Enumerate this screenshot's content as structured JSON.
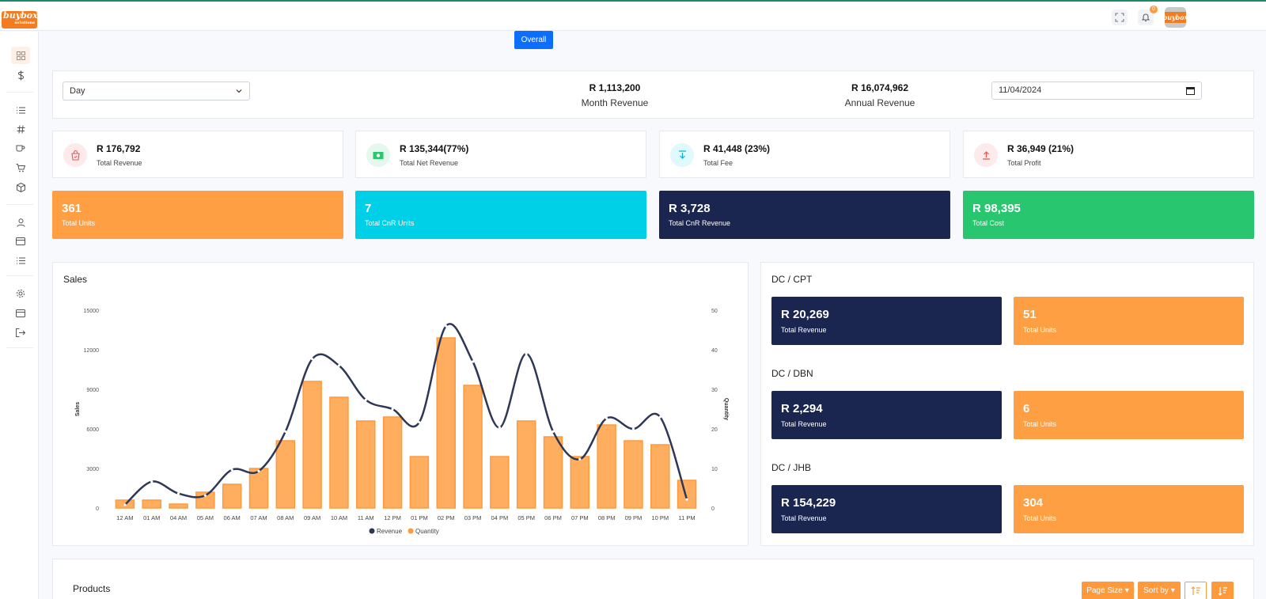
{
  "brand": {
    "logo_text": "buybox",
    "logo_sub": "solutions",
    "avatar_text": "buybox"
  },
  "topbar": {
    "notification_count": "0"
  },
  "colors": {
    "orange": "#ff9a3c",
    "cyan": "#00cfe8",
    "navy": "#1b2650",
    "green": "#28c76f",
    "primary": "#0d6efd"
  },
  "sidebar": {
    "icons": [
      "dashboard-icon",
      "dollar-icon",
      "list-icon",
      "hash-icon",
      "cup-icon",
      "cart-icon",
      "box-icon",
      "user-icon",
      "card-icon",
      "list-icon",
      "gear-icon",
      "card-icon",
      "logout-icon"
    ]
  },
  "header": {
    "overall_label": "Overall"
  },
  "filters": {
    "period": "Day",
    "month_revenue_value": "R 1,113,200",
    "month_revenue_label": "Month Revenue",
    "annual_revenue_value": "R 16,074,962",
    "annual_revenue_label": "Annual Revenue",
    "date": "11/04/2024"
  },
  "stats": [
    {
      "value": "R 176,792",
      "label": "Total Revenue",
      "icon": "bag-icon",
      "color": "#ea5455",
      "bg": "#fdeaea"
    },
    {
      "value": "R 135,344(77%)",
      "label": "Total Net Revenue",
      "icon": "money-icon",
      "color": "#28c76f",
      "bg": "#e5f8ed"
    },
    {
      "value": "R 41,448 (23%)",
      "label": "Total Fee",
      "icon": "download-icon",
      "color": "#00cfe8",
      "bg": "#e0f9fc"
    },
    {
      "value": "R 36,949 (21%)",
      "label": "Total Profit",
      "icon": "upload-icon",
      "color": "#ea5455",
      "bg": "#fdeaea"
    }
  ],
  "tiles": [
    {
      "value": "361",
      "label": "Total Units",
      "color": "#ff9f43"
    },
    {
      "value": "7",
      "label": "Total CnR Units",
      "color": "#00cfe8"
    },
    {
      "value": "R 3,728",
      "label": "Total CnR Revenue",
      "color": "#1b2650"
    },
    {
      "value": "R 98,395",
      "label": "Total Cost",
      "color": "#28c76f"
    }
  ],
  "sales": {
    "title": "Sales"
  },
  "chart_data": {
    "type": "bar",
    "title": "",
    "categories": [
      "12 AM",
      "01 AM",
      "04 AM",
      "05 AM",
      "06 AM",
      "07 AM",
      "08 AM",
      "09 AM",
      "10 AM",
      "11 AM",
      "12 PM",
      "01 PM",
      "02 PM",
      "03 PM",
      "04 PM",
      "05 PM",
      "06 PM",
      "07 PM",
      "08 PM",
      "09 PM",
      "10 PM",
      "11 PM"
    ],
    "ylabel": "Sales",
    "y2label": "Quantity",
    "ylim": [
      0,
      15000
    ],
    "y2lim": [
      0,
      50
    ],
    "yticks": [
      "15000",
      "12000",
      "9000",
      "6000",
      "3000",
      "0"
    ],
    "y2ticks": [
      "50",
      "40",
      "30",
      "20",
      "10",
      "0"
    ],
    "legend_position": "bottom",
    "series": [
      {
        "name": "Revenue",
        "axis": "left",
        "kind": "line",
        "color": "#2d3756",
        "values": [
          250,
          2000,
          1100,
          950,
          2900,
          2800,
          5800,
          11300,
          10800,
          8200,
          7500,
          6500,
          13800,
          11100,
          6100,
          11700,
          5800,
          3700,
          6800,
          6000,
          6900,
          650
        ]
      },
      {
        "name": "Quantity",
        "axis": "right",
        "kind": "bar",
        "color": "#ff9a3c",
        "values": [
          2,
          2,
          1,
          4,
          6,
          10,
          17,
          32,
          28,
          22,
          23,
          13,
          43,
          31,
          13,
          22,
          18,
          13,
          21,
          17,
          16,
          7
        ]
      }
    ]
  },
  "dc": [
    {
      "title": "DC / CPT",
      "revenue": "R 20,269",
      "revenue_label": "Total Revenue",
      "units": "51",
      "units_label": "Total Units"
    },
    {
      "title": "DC / DBN",
      "revenue": "R 2,294",
      "revenue_label": "Total Revenue",
      "units": "6",
      "units_label": "Total Units"
    },
    {
      "title": "DC / JHB",
      "revenue": "R 154,229",
      "revenue_label": "Total Revenue",
      "units": "304",
      "units_label": "Total Units"
    }
  ],
  "products": {
    "title": "Products",
    "page_size_label": "Page Size",
    "sort_by_label": "Sort by"
  }
}
